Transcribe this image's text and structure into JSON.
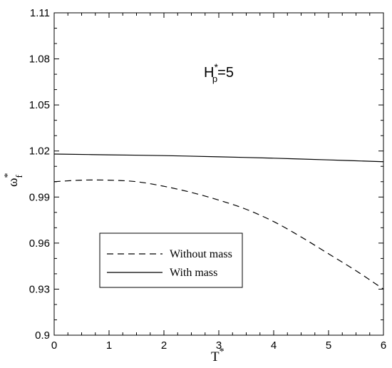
{
  "chart_data": {
    "type": "line",
    "xlabel": {
      "base": "T",
      "sup": "*"
    },
    "ylabel": {
      "base": "ω",
      "sup": "*",
      "sub": "f"
    },
    "annotation": {
      "base": "H",
      "sup": "*",
      "sub": "p",
      "suffix": "=5"
    },
    "xlim": [
      0,
      6
    ],
    "ylim": [
      0.9,
      1.11
    ],
    "x_ticks": [
      "0",
      "1",
      "2",
      "3",
      "4",
      "5",
      "6"
    ],
    "y_ticks": [
      "0.9",
      "0.93",
      "0.96",
      "0.99",
      "1.02",
      "1.05",
      "1.08",
      "1.11"
    ],
    "grid": false,
    "legend_position": "lower-left",
    "series": [
      {
        "name": "Without mass",
        "line_style": "dashed",
        "x": [
          0,
          0.5,
          1,
          1.5,
          2,
          2.5,
          3,
          3.5,
          4,
          4.5,
          5,
          5.5,
          6
        ],
        "y": [
          1.0,
          1.001,
          1.001,
          1.0,
          0.997,
          0.993,
          0.988,
          0.982,
          0.974,
          0.964,
          0.953,
          0.942,
          0.93
        ]
      },
      {
        "name": "With mass",
        "line_style": "solid",
        "x": [
          0,
          1,
          2,
          3,
          4,
          5,
          6
        ],
        "y": [
          1.018,
          1.0175,
          1.017,
          1.0162,
          1.0153,
          1.0142,
          1.013
        ]
      }
    ]
  }
}
